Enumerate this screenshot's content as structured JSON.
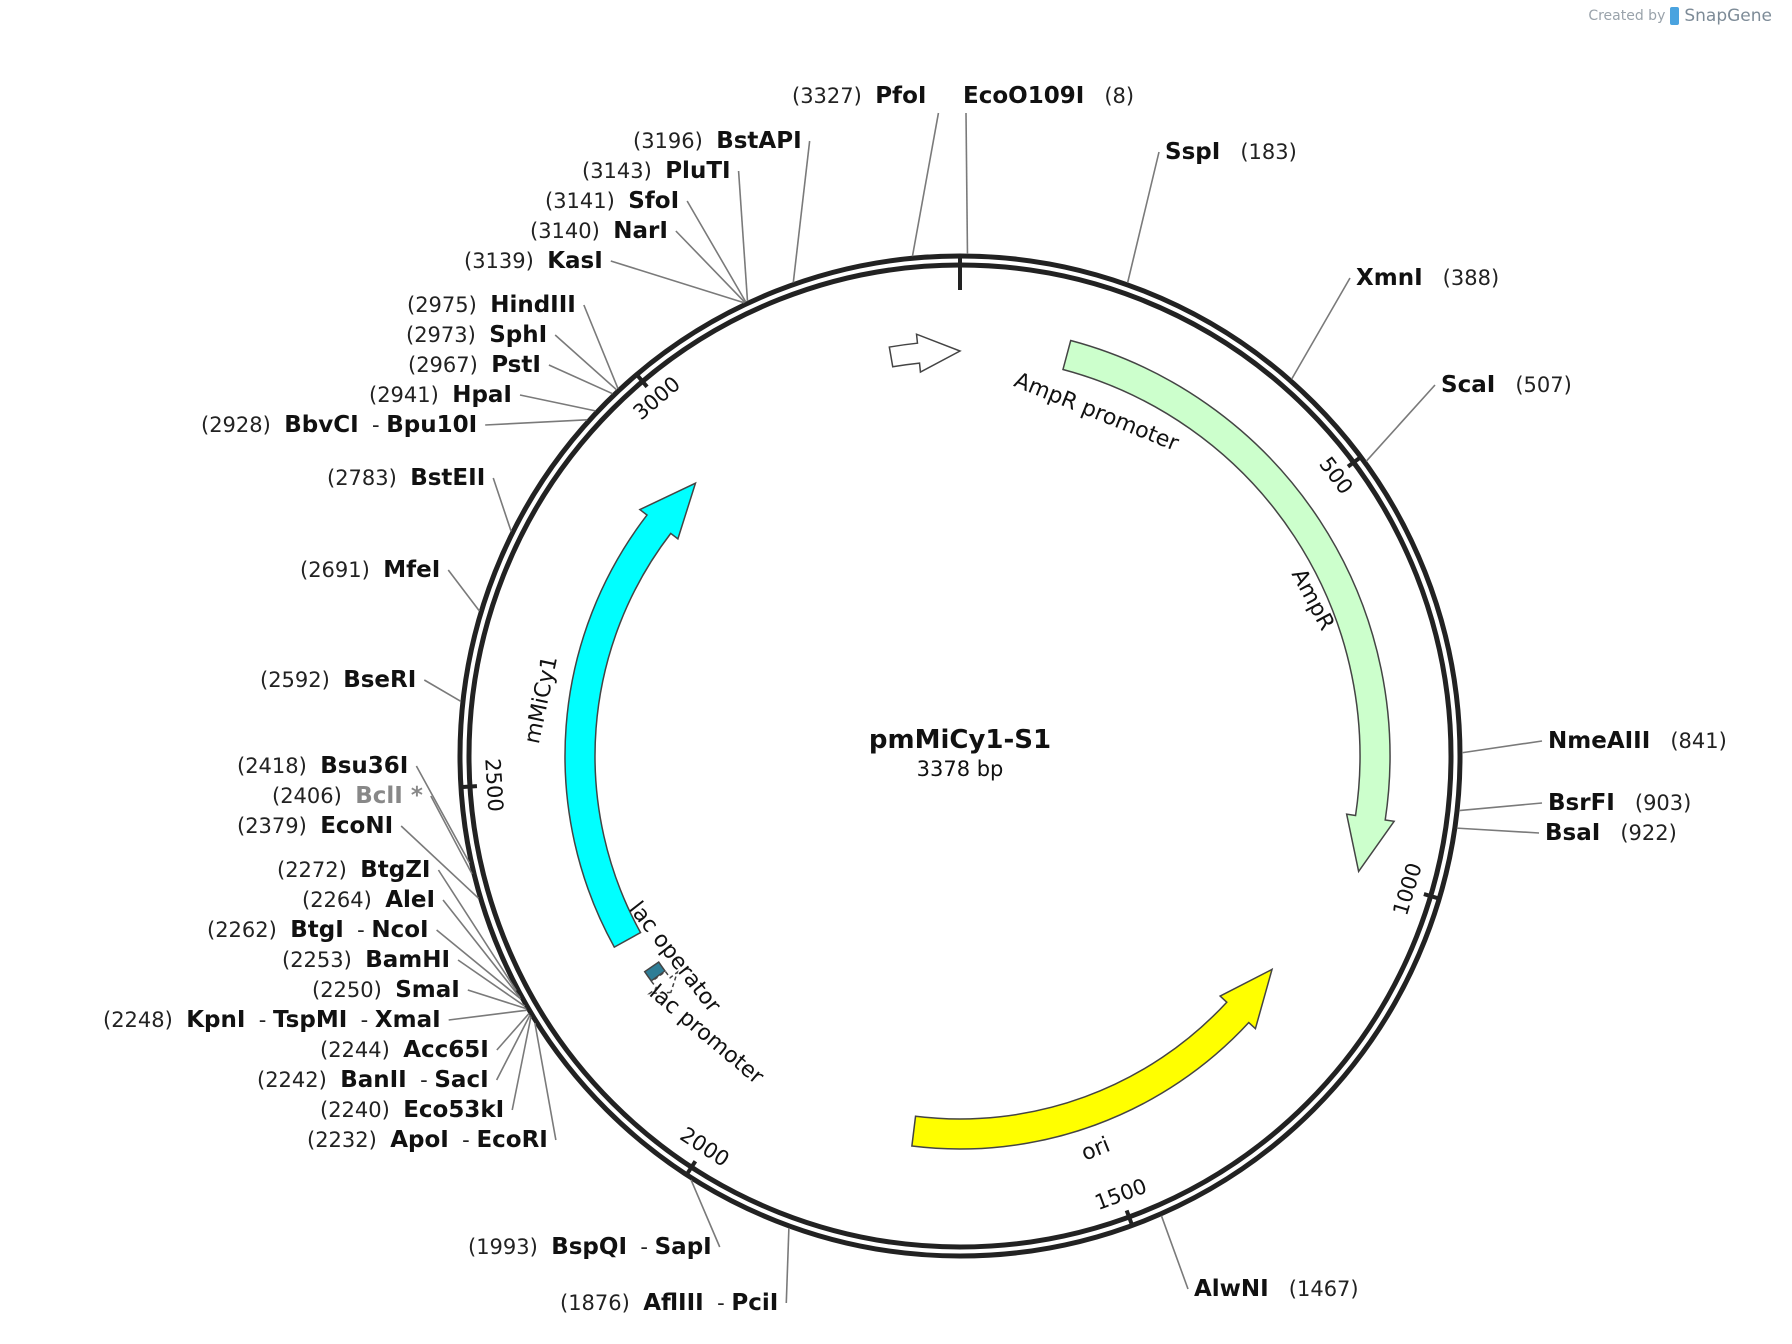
{
  "watermark": {
    "prefix": "Created by",
    "brand": "SnapGene"
  },
  "plasmid": {
    "name": "pmMiCy1-S1",
    "length_label": "3378 bp",
    "length": 3378
  },
  "tick_marks": [
    {
      "pos": 500,
      "label": "500"
    },
    {
      "pos": 1000,
      "label": "1000"
    },
    {
      "pos": 1500,
      "label": "1500"
    },
    {
      "pos": 2000,
      "label": "2000"
    },
    {
      "pos": 2500,
      "label": "2500"
    },
    {
      "pos": 3000,
      "label": "3000"
    }
  ],
  "features": [
    {
      "name": "AmpR promoter",
      "start": 3286,
      "end": 3378,
      "dir": 1,
      "kind": "promoter",
      "color": "#ffffff"
    },
    {
      "name": "AmpR",
      "start": 140,
      "end": 996,
      "dir": 1,
      "kind": "cds",
      "color": "#ccffcc"
    },
    {
      "name": "ori",
      "start": 1167,
      "end": 1755,
      "dir": -1,
      "kind": "rep",
      "color": "#ffff00"
    },
    {
      "name": "lac operator",
      "start": 2195,
      "end": 2211,
      "dir": 0,
      "kind": "operator",
      "color": "#2e7d96"
    },
    {
      "name": "lac promoter",
      "start": 2165,
      "end": 2194,
      "dir": -1,
      "kind": "promoter",
      "color": "#ffffff"
    },
    {
      "name": "mMiCy1",
      "start": 2262,
      "end": 2964,
      "dir": 1,
      "kind": "cds",
      "color": "#00ffff"
    }
  ],
  "sites": [
    {
      "pos": "(3327)",
      "names": [
        "PfoI"
      ],
      "side": "left"
    },
    {
      "pos": "(8)",
      "names": [
        "EcoO109I"
      ],
      "side": "right"
    },
    {
      "pos": "(183)",
      "names": [
        "SspI"
      ],
      "side": "right"
    },
    {
      "pos": "(388)",
      "names": [
        "XmnI"
      ],
      "side": "right"
    },
    {
      "pos": "(507)",
      "names": [
        "ScaI"
      ],
      "side": "right"
    },
    {
      "pos": "(841)",
      "names": [
        "NmeAIII"
      ],
      "side": "right"
    },
    {
      "pos": "(903)",
      "names": [
        "BsrFI"
      ],
      "side": "right"
    },
    {
      "pos": "(922)",
      "names": [
        "BsaI"
      ],
      "side": "right"
    },
    {
      "pos": "(1467)",
      "names": [
        "AlwNI"
      ],
      "side": "right"
    },
    {
      "pos": "(1876)",
      "names": [
        "AflIII",
        "PciI"
      ],
      "side": "left"
    },
    {
      "pos": "(1993)",
      "names": [
        "BspQI",
        "SapI"
      ],
      "side": "left"
    },
    {
      "pos": "(2232)",
      "names": [
        "ApoI",
        "EcoRI"
      ],
      "side": "left"
    },
    {
      "pos": "(2240)",
      "names": [
        "Eco53kI"
      ],
      "side": "left"
    },
    {
      "pos": "(2242)",
      "names": [
        "BanII",
        "SacI"
      ],
      "side": "left"
    },
    {
      "pos": "(2244)",
      "names": [
        "Acc65I"
      ],
      "side": "left"
    },
    {
      "pos": "(2248)",
      "names": [
        "KpnI",
        "TspMI",
        "XmaI"
      ],
      "side": "left"
    },
    {
      "pos": "(2250)",
      "names": [
        "SmaI"
      ],
      "side": "left"
    },
    {
      "pos": "(2253)",
      "names": [
        "BamHI"
      ],
      "side": "left"
    },
    {
      "pos": "(2262)",
      "names": [
        "BtgI",
        "NcoI"
      ],
      "side": "left"
    },
    {
      "pos": "(2264)",
      "names": [
        "AleI"
      ],
      "side": "left"
    },
    {
      "pos": "(2272)",
      "names": [
        "BtgZI"
      ],
      "side": "left"
    },
    {
      "pos": "(2379)",
      "names": [
        "EcoNI"
      ],
      "side": "left"
    },
    {
      "pos": "(2406)",
      "names": [
        "BclI"
      ],
      "side": "left",
      "grey": true,
      "star": "*"
    },
    {
      "pos": "(2418)",
      "names": [
        "Bsu36I"
      ],
      "side": "left"
    },
    {
      "pos": "(2592)",
      "names": [
        "BseRI"
      ],
      "side": "left"
    },
    {
      "pos": "(2691)",
      "names": [
        "MfeI"
      ],
      "side": "left"
    },
    {
      "pos": "(2783)",
      "names": [
        "BstEII"
      ],
      "side": "left"
    },
    {
      "pos": "(2928)",
      "names": [
        "BbvCI",
        "Bpu10I"
      ],
      "side": "left"
    },
    {
      "pos": "(2941)",
      "names": [
        "HpaI"
      ],
      "side": "left"
    },
    {
      "pos": "(2967)",
      "names": [
        "PstI"
      ],
      "side": "left"
    },
    {
      "pos": "(2973)",
      "names": [
        "SphI"
      ],
      "side": "left"
    },
    {
      "pos": "(2975)",
      "names": [
        "HindIII"
      ],
      "side": "left"
    },
    {
      "pos": "(3139)",
      "names": [
        "KasI"
      ],
      "side": "left"
    },
    {
      "pos": "(3140)",
      "names": [
        "NarI"
      ],
      "side": "left"
    },
    {
      "pos": "(3141)",
      "names": [
        "SfoI"
      ],
      "side": "left"
    },
    {
      "pos": "(3143)",
      "names": [
        "PluTI"
      ],
      "side": "left"
    },
    {
      "pos": "(3196)",
      "names": [
        "BstAPI"
      ],
      "side": "left"
    }
  ]
}
